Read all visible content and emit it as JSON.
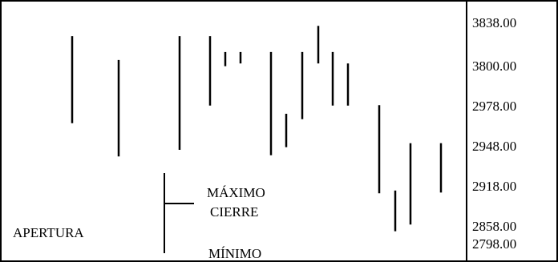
{
  "chart_data": {
    "type": "ohlc",
    "title": "",
    "xlabel": "",
    "ylabel": "",
    "grid": false,
    "y_ticks": [
      "3838.00",
      "3800.00",
      "2978.00",
      "2948.00",
      "2918.00",
      "2858.00",
      "2798.00"
    ],
    "bars": [
      {
        "high": 3826,
        "low": 2965
      },
      {
        "high": 3805,
        "low": 2940
      },
      {
        "high": 3826,
        "low": 2945
      },
      {
        "high": 3826,
        "low": 2981
      },
      {
        "high": 3812,
        "low": 3790
      },
      {
        "high": 3812,
        "low": 3802
      },
      {
        "high": 3812,
        "low": 2941
      },
      {
        "high": 2972,
        "low": 2947
      },
      {
        "high": 3812,
        "low": 2968
      },
      {
        "high": 3835,
        "low": 3802
      },
      {
        "high": 3812,
        "low": 2981
      },
      {
        "high": 3802,
        "low": 2981
      },
      {
        "high": 2990,
        "low": 2907
      },
      {
        "high": 2911,
        "low": 2840
      },
      {
        "high": 2950,
        "low": 2860
      },
      {
        "high": 2950,
        "low": 2908
      }
    ],
    "legend": {
      "max_label": "MÁXIMO",
      "close_label": "CIERRE",
      "open_label": "APERTURA",
      "min_label": "MÍNIMO"
    }
  }
}
